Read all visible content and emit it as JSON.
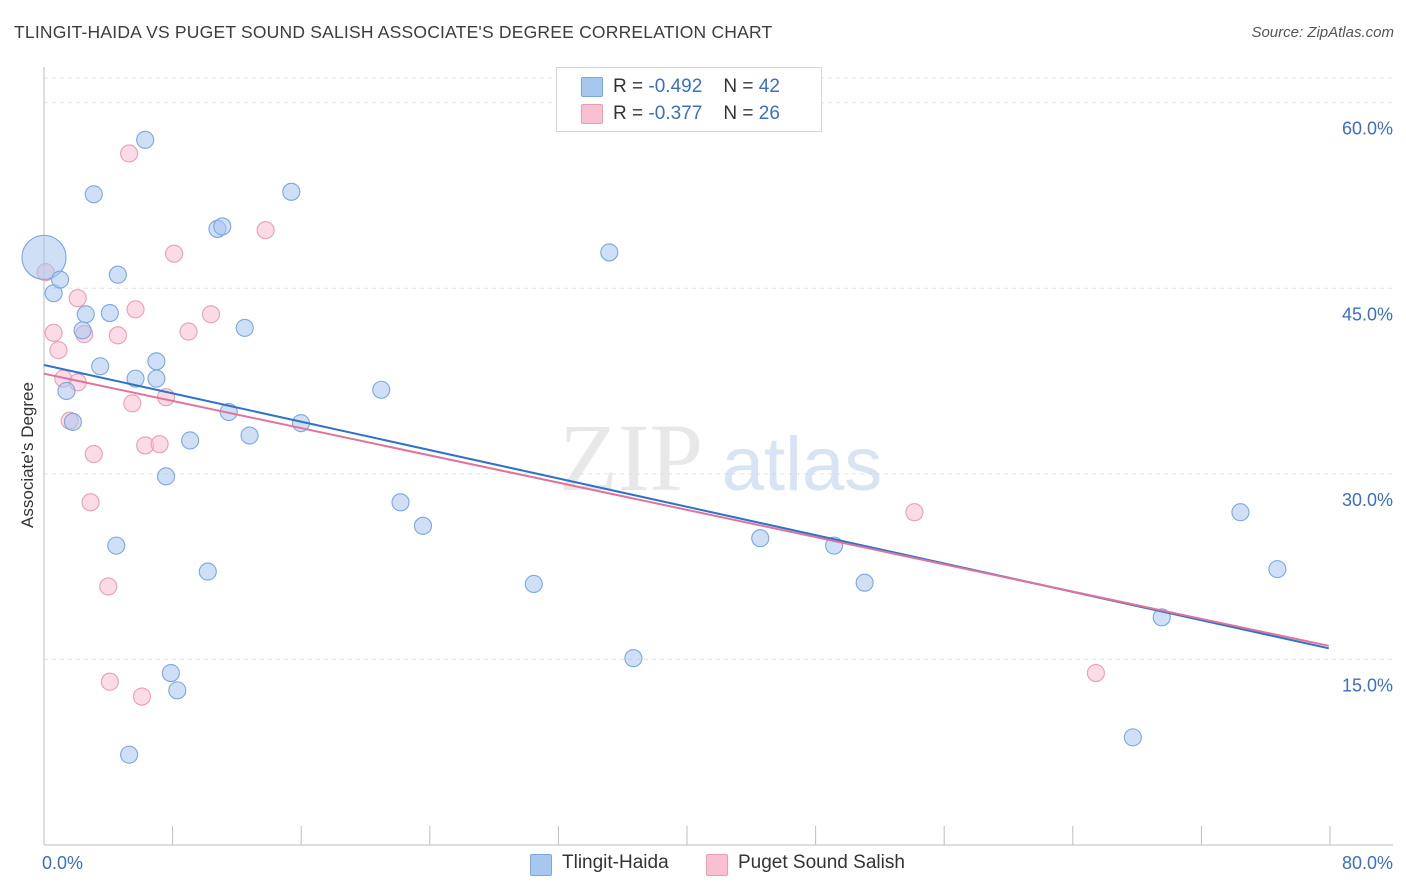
{
  "title": "TLINGIT-HAIDA VS PUGET SOUND SALISH ASSOCIATE'S DEGREE CORRELATION CHART",
  "source": "Source: ZipAtlas.com",
  "watermark": {
    "zip": "ZIP",
    "atlas": "atlas"
  },
  "legend": {
    "r_label": "R =",
    "n_label": "N =",
    "rows": [
      {
        "r": "-0.492",
        "n": "42"
      },
      {
        "r": "-0.377",
        "n": "26"
      }
    ]
  },
  "chart_data": {
    "type": "scatter",
    "title": "TLINGIT-HAIDA VS PUGET SOUND SALISH ASSOCIATE'S DEGREE CORRELATION CHART",
    "xlabel": "",
    "ylabel": "Associate's Degree",
    "xlim": [
      0,
      84
    ],
    "ylim": [
      0,
      62
    ],
    "x_tick_labels": [
      "0.0%",
      "80.0%"
    ],
    "y_ticks": [
      15,
      30,
      45,
      60
    ],
    "y_tick_labels": [
      "15.0%",
      "30.0%",
      "45.0%",
      "60.0%"
    ],
    "grid": true,
    "legend_position": "top-center",
    "series": [
      {
        "name": "Tlingit-Haida",
        "color": "#a7c7ef",
        "stroke": "#7aa7e0",
        "line_color": "#2f72c8",
        "r": -0.492,
        "n": 42,
        "trend": {
          "x0": 0,
          "y0": 38.8,
          "x1": 80,
          "y1": 15.9
        },
        "points": [
          [
            0,
            47.5
          ],
          [
            0.6,
            44.6
          ],
          [
            1.0,
            45.7
          ],
          [
            1.4,
            36.7
          ],
          [
            1.8,
            34.2
          ],
          [
            2.6,
            42.9
          ],
          [
            2.4,
            41.6
          ],
          [
            3.1,
            52.6
          ],
          [
            3.5,
            38.7
          ],
          [
            4.1,
            43.0
          ],
          [
            4.6,
            46.1
          ],
          [
            4.5,
            24.2
          ],
          [
            5.3,
            7.3
          ],
          [
            5.7,
            37.7
          ],
          [
            6.3,
            57.0
          ],
          [
            7.0,
            39.1
          ],
          [
            7.0,
            37.7
          ],
          [
            7.6,
            29.8
          ],
          [
            7.9,
            13.9
          ],
          [
            8.3,
            12.5
          ],
          [
            9.1,
            32.7
          ],
          [
            10.2,
            22.1
          ],
          [
            10.8,
            49.8
          ],
          [
            11.1,
            50.0
          ],
          [
            11.5,
            35.0
          ],
          [
            12.5,
            41.8
          ],
          [
            12.8,
            33.1
          ],
          [
            15.4,
            52.8
          ],
          [
            16.0,
            34.1
          ],
          [
            21.0,
            36.8
          ],
          [
            22.2,
            27.7
          ],
          [
            23.6,
            25.8
          ],
          [
            30.5,
            21.1
          ],
          [
            35.2,
            47.9
          ],
          [
            36.7,
            15.1
          ],
          [
            44.6,
            24.8
          ],
          [
            49.2,
            24.2
          ],
          [
            51.1,
            21.2
          ],
          [
            67.8,
            8.7
          ],
          [
            69.6,
            18.4
          ],
          [
            74.5,
            26.9
          ],
          [
            76.8,
            22.3
          ]
        ]
      },
      {
        "name": "Puget Sound Salish",
        "color": "#f8c0d1",
        "stroke": "#ec9db6",
        "line_color": "#e0739c",
        "r": -0.377,
        "n": 26,
        "trend": {
          "x0": 0,
          "y0": 38.1,
          "x1": 80,
          "y1": 16.1
        },
        "points": [
          [
            0.1,
            46.3
          ],
          [
            0.6,
            41.4
          ],
          [
            0.9,
            40.0
          ],
          [
            1.2,
            37.7
          ],
          [
            1.6,
            34.3
          ],
          [
            2.1,
            37.4
          ],
          [
            2.1,
            44.2
          ],
          [
            2.5,
            41.3
          ],
          [
            2.9,
            27.7
          ],
          [
            3.1,
            31.6
          ],
          [
            4.0,
            20.9
          ],
          [
            4.1,
            13.2
          ],
          [
            4.6,
            41.2
          ],
          [
            5.3,
            55.9
          ],
          [
            5.5,
            35.7
          ],
          [
            5.7,
            43.3
          ],
          [
            6.1,
            12.0
          ],
          [
            6.3,
            32.3
          ],
          [
            7.2,
            32.4
          ],
          [
            7.6,
            36.2
          ],
          [
            8.1,
            47.8
          ],
          [
            9.0,
            41.5
          ],
          [
            10.4,
            42.9
          ],
          [
            13.8,
            49.7
          ],
          [
            54.2,
            26.9
          ],
          [
            65.5,
            13.9
          ]
        ]
      }
    ]
  }
}
